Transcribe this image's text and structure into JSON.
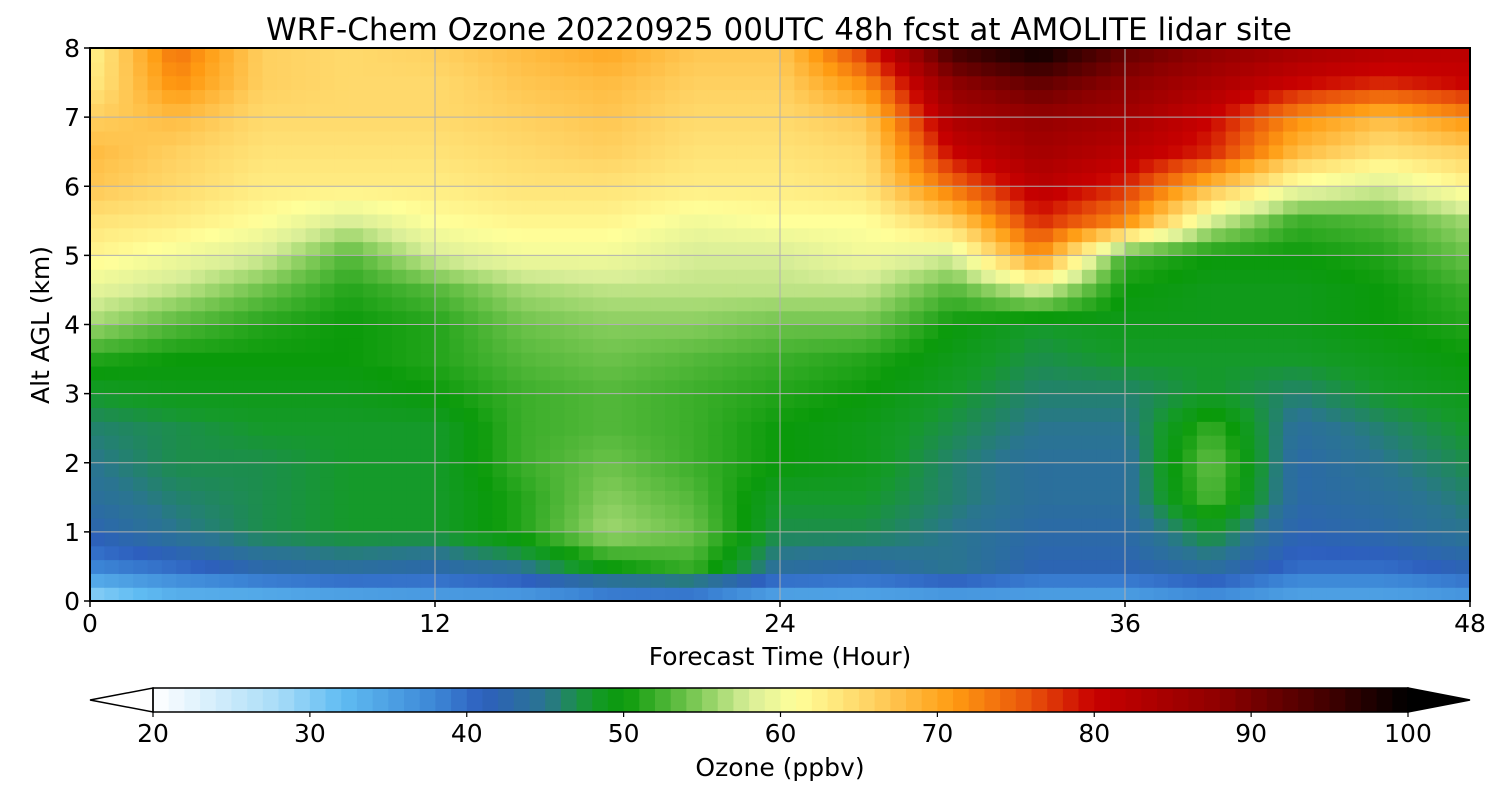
{
  "chart_data": {
    "type": "heatmap",
    "title": "WRF-Chem Ozone  20220925 00UTC 48h fcst at AMOLITE lidar site",
    "xlabel": "Forecast Time (Hour)",
    "ylabel": "Alt AGL (km)",
    "xlim": [
      0,
      48
    ],
    "ylim": [
      0,
      8
    ],
    "x_ticks": [
      0,
      12,
      24,
      36,
      48
    ],
    "y_ticks": [
      0,
      1,
      2,
      3,
      4,
      5,
      6,
      7,
      8
    ],
    "grid": true,
    "x": [
      0,
      3,
      6,
      9,
      12,
      15,
      18,
      21,
      24,
      27,
      30,
      33,
      36,
      39,
      42,
      45,
      48
    ],
    "y": [
      0,
      0.5,
      1,
      1.5,
      2,
      2.5,
      3,
      3.5,
      4,
      4.5,
      5,
      5.5,
      6,
      6.5,
      7,
      7.5,
      8
    ],
    "z": [
      [
        28,
        32,
        32,
        33,
        34,
        34,
        36,
        36,
        33,
        33,
        34,
        34,
        34,
        36,
        34,
        34,
        35
      ],
      [
        38,
        40,
        43,
        44,
        43,
        45,
        50,
        52,
        44,
        43,
        45,
        42,
        42,
        44,
        40,
        40,
        42
      ],
      [
        42,
        45,
        47,
        48,
        48,
        51,
        56,
        54,
        47,
        47,
        45,
        43,
        43,
        48,
        42,
        43,
        45
      ],
      [
        44,
        46,
        47,
        48,
        48,
        51,
        55,
        53,
        48,
        48,
        46,
        44,
        44,
        53,
        43,
        44,
        46
      ],
      [
        45,
        47,
        47,
        48,
        48,
        52,
        54,
        52,
        50,
        49,
        46,
        44,
        44,
        54,
        43,
        45,
        47
      ],
      [
        46,
        47,
        48,
        48,
        48,
        52,
        53,
        52,
        50,
        49,
        47,
        45,
        45,
        52,
        44,
        46,
        48
      ],
      [
        48,
        49,
        49,
        49,
        50,
        52,
        53,
        52,
        51,
        50,
        48,
        46,
        46,
        48,
        46,
        48,
        49
      ],
      [
        51,
        50,
        50,
        50,
        51,
        53,
        54,
        53,
        52,
        51,
        49,
        47,
        48,
        48,
        48,
        49,
        50
      ],
      [
        56,
        53,
        51,
        50,
        51,
        54,
        55,
        55,
        54,
        54,
        50,
        48,
        49,
        49,
        49,
        50,
        51
      ],
      [
        59,
        57,
        54,
        51,
        53,
        56,
        57,
        57,
        57,
        57,
        53,
        58,
        50,
        49,
        49,
        50,
        52
      ],
      [
        62,
        60,
        58,
        53,
        58,
        60,
        60,
        58,
        58,
        60,
        58,
        72,
        52,
        50,
        50,
        51,
        54
      ],
      [
        64,
        63,
        61,
        58,
        61,
        62,
        62,
        60,
        61,
        61,
        66,
        78,
        72,
        58,
        52,
        53,
        56
      ],
      [
        67,
        65,
        63,
        63,
        63,
        64,
        64,
        63,
        63,
        64,
        74,
        82,
        78,
        68,
        60,
        58,
        62
      ],
      [
        68,
        66,
        64,
        64,
        64,
        65,
        66,
        64,
        64,
        65,
        80,
        85,
        82,
        78,
        68,
        64,
        66
      ],
      [
        66,
        68,
        65,
        65,
        65,
        66,
        67,
        65,
        65,
        67,
        84,
        87,
        85,
        80,
        72,
        68,
        72
      ],
      [
        63,
        72,
        66,
        65,
        65,
        67,
        68,
        66,
        66,
        72,
        88,
        92,
        88,
        84,
        80,
        78,
        80
      ],
      [
        62,
        74,
        66,
        65,
        66,
        68,
        70,
        67,
        67,
        78,
        95,
        100,
        92,
        88,
        85,
        83,
        82
      ]
    ],
    "colorbar": {
      "label": "Ozone  (ppbv)",
      "ticks": [
        20,
        30,
        40,
        50,
        60,
        70,
        80,
        90,
        100
      ],
      "vmin": 20,
      "vmax": 100,
      "extend": "both"
    },
    "colors": {
      "stops": [
        [
          20,
          "#ffffff"
        ],
        [
          28,
          "#a8dcf8"
        ],
        [
          32,
          "#60bcf2"
        ],
        [
          38,
          "#3c86d6"
        ],
        [
          41,
          "#2d5fbe"
        ],
        [
          45,
          "#2a7590"
        ],
        [
          48,
          "#159a2a"
        ],
        [
          50,
          "#0a9a0a"
        ],
        [
          54,
          "#6cc24a"
        ],
        [
          58,
          "#d8ee98"
        ],
        [
          61,
          "#ffff9a"
        ],
        [
          66,
          "#ffd060"
        ],
        [
          71,
          "#ff9c12"
        ],
        [
          76,
          "#e8500a"
        ],
        [
          80,
          "#c80000"
        ],
        [
          88,
          "#8e0000"
        ],
        [
          95,
          "#400000"
        ],
        [
          100,
          "#000000"
        ]
      ],
      "grid": "#b0b0b0",
      "frame": "#000000"
    }
  }
}
